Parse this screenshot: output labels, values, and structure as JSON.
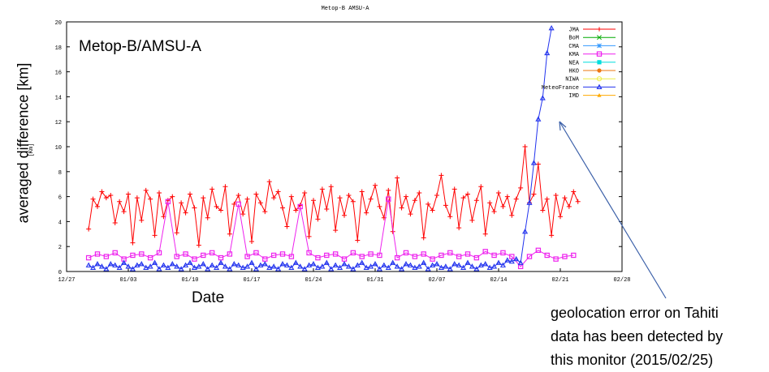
{
  "overlay": {
    "title": "Metop-B/AMSU-A",
    "ylabel": "averaged difference [km]",
    "xlabel": "Date",
    "annotation_lines": [
      "geolocation error on Tahiti",
      "data has been detected by",
      "this monitor (2015/02/25)"
    ]
  },
  "chart_data": {
    "type": "line",
    "title": "Metop-B AMSU-A",
    "xlabel": "",
    "ylabel": "[Km]",
    "x_ticks": [
      "12/27",
      "01/03",
      "01/10",
      "01/17",
      "01/24",
      "01/31",
      "02/07",
      "02/14",
      "02/21",
      "02/28"
    ],
    "xlim_days": [
      0,
      63
    ],
    "ylim": [
      0,
      20
    ],
    "y_ticks": [
      0,
      2,
      4,
      6,
      8,
      10,
      12,
      14,
      16,
      18,
      20
    ],
    "grid": false,
    "legend_position": "top-right",
    "series": [
      {
        "name": "JMA",
        "color": "#ff0000",
        "marker": "plus",
        "x": [
          2.5,
          3,
          3.5,
          4,
          4.5,
          5,
          5.5,
          6,
          6.5,
          7,
          7.5,
          8,
          8.5,
          9,
          9.5,
          10,
          10.5,
          11,
          11.5,
          12,
          12.5,
          13,
          13.5,
          14,
          14.5,
          15,
          15.5,
          16,
          16.5,
          17,
          17.5,
          18,
          18.5,
          19,
          19.5,
          20,
          20.5,
          21,
          21.5,
          22,
          22.5,
          23,
          23.5,
          24,
          24.5,
          25,
          25.5,
          26,
          26.5,
          27,
          27.5,
          28,
          28.5,
          29,
          29.5,
          30,
          30.5,
          31,
          31.5,
          32,
          32.5,
          33,
          33.5,
          34,
          34.5,
          35,
          35.5,
          36,
          36.5,
          37,
          37.5,
          38,
          38.5,
          39,
          39.5,
          40,
          40.5,
          41,
          41.5,
          42,
          42.5,
          43,
          43.5,
          44,
          44.5,
          45,
          45.5,
          46,
          46.5,
          47,
          47.5,
          48,
          48.5,
          49,
          49.5,
          50,
          50.5,
          51,
          51.5,
          52,
          52.5,
          53,
          53.5,
          54,
          54.5,
          55,
          55.5,
          56,
          56.5,
          57,
          57.5,
          58
        ],
        "y": [
          3.4,
          5.8,
          5.2,
          6.4,
          5.9,
          6.1,
          3.9,
          5.6,
          4.8,
          6.2,
          2.3,
          5.9,
          4.1,
          6.5,
          5.8,
          2.9,
          6.3,
          4.4,
          5.7,
          6.0,
          3.1,
          5.5,
          4.7,
          6.2,
          5.1,
          2.1,
          5.9,
          4.3,
          6.6,
          5.2,
          4.9,
          6.8,
          3.0,
          5.4,
          6.1,
          4.6,
          5.8,
          2.4,
          6.2,
          5.5,
          4.8,
          7.2,
          5.9,
          6.4,
          5.1,
          3.6,
          6.0,
          4.9,
          5.3,
          6.3,
          2.8,
          5.7,
          4.2,
          6.6,
          5.0,
          6.8,
          3.3,
          5.9,
          4.5,
          6.1,
          5.6,
          2.5,
          6.4,
          4.7,
          5.8,
          6.9,
          5.2,
          4.3,
          6.5,
          3.2,
          7.5,
          5.1,
          6.0,
          4.6,
          5.7,
          6.3,
          2.7,
          5.4,
          4.9,
          6.1,
          7.7,
          5.3,
          4.4,
          6.6,
          3.5,
          5.9,
          6.2,
          4.1,
          5.7,
          6.8,
          3.0,
          5.5,
          4.8,
          6.3,
          5.2,
          6.0,
          4.5,
          5.8,
          6.7,
          10.0,
          5.5,
          6.2,
          8.6,
          4.9,
          5.8,
          2.9,
          6.1,
          4.4,
          5.9,
          5.2,
          6.4,
          5.6
        ]
      },
      {
        "name": "BoM",
        "color": "#00aa00",
        "marker": "cross",
        "x": [],
        "y": []
      },
      {
        "name": "CMA",
        "color": "#3399ff",
        "marker": "star",
        "x": [],
        "y": []
      },
      {
        "name": "KMA",
        "color": "#ee22ee",
        "marker": "square",
        "x": [
          2.5,
          3.5,
          4.5,
          5.5,
          6.5,
          7.5,
          8.5,
          9.5,
          10.5,
          11.5,
          12.5,
          13.5,
          14.5,
          15.5,
          16.5,
          17.5,
          18.5,
          19.5,
          20.5,
          21.5,
          22.5,
          23.5,
          24.5,
          25.5,
          26.5,
          27.5,
          28.5,
          29.5,
          30.5,
          31.5,
          32.5,
          33.5,
          34.5,
          35.5,
          36.5,
          37.5,
          38.5,
          39.5,
          40.5,
          41.5,
          42.5,
          43.5,
          44.5,
          45.5,
          46.5,
          47.5,
          48.5,
          49.5,
          50.5,
          51.5,
          52.5,
          53.5,
          54.5,
          55.5,
          56.5,
          57.5
        ],
        "y": [
          1.1,
          1.4,
          1.2,
          1.5,
          1.0,
          1.3,
          1.4,
          1.1,
          1.5,
          5.6,
          1.2,
          1.4,
          1.0,
          1.3,
          1.5,
          1.1,
          1.4,
          5.4,
          1.2,
          1.5,
          1.0,
          1.3,
          1.4,
          1.2,
          5.2,
          1.5,
          1.1,
          1.3,
          1.4,
          1.0,
          1.5,
          1.2,
          1.4,
          1.3,
          5.8,
          1.1,
          1.5,
          1.2,
          1.4,
          1.0,
          1.3,
          1.5,
          1.2,
          1.4,
          1.1,
          1.6,
          1.3,
          1.5,
          1.2,
          0.4,
          1.2,
          1.7,
          1.3,
          1.0,
          1.2,
          1.3
        ]
      },
      {
        "name": "NEA",
        "color": "#00dddd",
        "marker": "filled-square",
        "x": [],
        "y": []
      },
      {
        "name": "HKO",
        "color": "#ee7711",
        "marker": "filled-circle",
        "x": [],
        "y": []
      },
      {
        "name": "NIWA",
        "color": "#eeee44",
        "marker": "circle",
        "x": [],
        "y": []
      },
      {
        "name": "MeteoFrance",
        "color": "#2233ee",
        "marker": "triangle",
        "x": [
          2.5,
          3,
          3.5,
          4,
          4.5,
          5,
          5.5,
          6,
          6.5,
          7,
          7.5,
          8,
          8.5,
          9,
          9.5,
          10,
          10.5,
          11,
          11.5,
          12,
          12.5,
          13,
          13.5,
          14,
          14.5,
          15,
          15.5,
          16,
          16.5,
          17,
          17.5,
          18,
          18.5,
          19,
          19.5,
          20,
          20.5,
          21,
          21.5,
          22,
          22.5,
          23,
          23.5,
          24,
          24.5,
          25,
          25.5,
          26,
          26.5,
          27,
          27.5,
          28,
          28.5,
          29,
          29.5,
          30,
          30.5,
          31,
          31.5,
          32,
          32.5,
          33,
          33.5,
          34,
          34.5,
          35,
          35.5,
          36,
          36.5,
          37,
          37.5,
          38,
          38.5,
          39,
          39.5,
          40,
          40.5,
          41,
          41.5,
          42,
          42.5,
          43,
          43.5,
          44,
          44.5,
          45,
          45.5,
          46,
          46.5,
          47,
          47.5,
          48,
          48.5,
          49,
          49.5,
          50,
          50.5,
          51,
          51.5,
          52,
          52.5,
          53,
          53.5,
          54,
          54.5,
          55
        ],
        "y": [
          0.5,
          0.3,
          0.6,
          0.4,
          0.2,
          0.6,
          0.5,
          0.3,
          0.7,
          0.4,
          0.2,
          0.5,
          0.6,
          0.3,
          0.4,
          0.7,
          0.2,
          0.5,
          0.3,
          0.6,
          0.4,
          0.2,
          0.5,
          0.7,
          0.3,
          0.4,
          0.6,
          0.2,
          0.5,
          0.3,
          0.7,
          0.4,
          0.2,
          0.6,
          0.5,
          0.3,
          0.4,
          0.7,
          0.2,
          0.5,
          0.6,
          0.3,
          0.4,
          0.2,
          0.6,
          0.5,
          0.3,
          0.7,
          0.4,
          0.2,
          0.5,
          0.6,
          0.3,
          0.4,
          0.7,
          0.2,
          0.5,
          0.3,
          0.6,
          0.4,
          0.2,
          0.5,
          0.7,
          0.3,
          0.4,
          0.6,
          0.2,
          0.5,
          0.3,
          0.7,
          0.4,
          0.2,
          0.6,
          0.5,
          0.3,
          0.4,
          0.7,
          0.2,
          0.5,
          0.6,
          0.3,
          0.4,
          0.2,
          0.6,
          0.5,
          0.3,
          0.7,
          0.4,
          0.2,
          0.5,
          0.6,
          0.3,
          0.4,
          0.7,
          0.5,
          0.9,
          0.8,
          1.0,
          0.7,
          3.2,
          5.5,
          8.7,
          12.2,
          13.9,
          17.5,
          19.5
        ]
      },
      {
        "name": "IMD",
        "color": "#ffaa00",
        "marker": "filled-triangle",
        "x": [],
        "y": []
      }
    ]
  }
}
